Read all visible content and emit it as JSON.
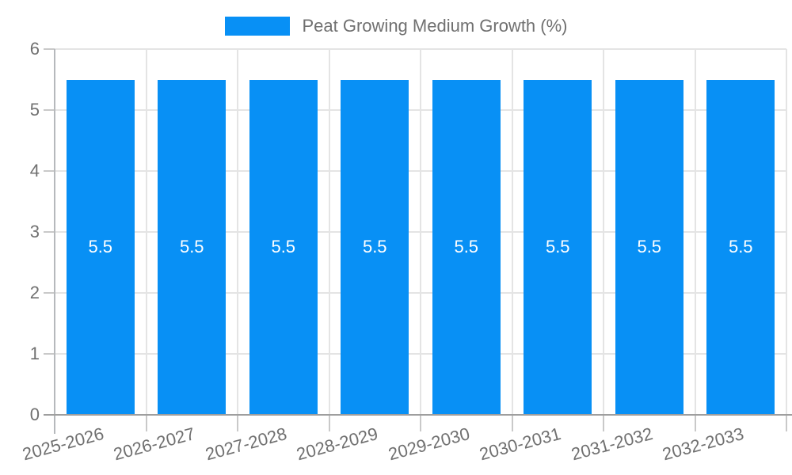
{
  "legend": {
    "label": "Peat Growing Medium Growth (%)"
  },
  "chart_data": {
    "type": "bar",
    "title": "",
    "xlabel": "",
    "ylabel": "",
    "categories": [
      "2025-2026",
      "2026-2027",
      "2027-2028",
      "2028-2029",
      "2029-2030",
      "2030-2031",
      "2031-2032",
      "2032-2033"
    ],
    "series": [
      {
        "name": "Peat Growing Medium Growth (%)",
        "values": [
          5.5,
          5.5,
          5.5,
          5.5,
          5.5,
          5.5,
          5.5,
          5.5
        ],
        "value_labels": [
          "5.5",
          "5.5",
          "5.5",
          "5.5",
          "5.5",
          "5.5",
          "5.5",
          "5.5"
        ]
      }
    ],
    "ylim": [
      0,
      6
    ],
    "yticks": [
      0,
      1,
      2,
      3,
      4,
      5,
      6
    ],
    "legend_position": "top-center",
    "grid": true,
    "colors": {
      "bar": "#0890F5",
      "value_label": "#ffffff",
      "axis_text": "#707070",
      "x_axis_line": "#9e9e9e",
      "y_axis_line": "#b6b9bc",
      "gridline": "#e4e4e4",
      "tick_stub": "#c9c9c9",
      "background": "#ffffff"
    }
  }
}
